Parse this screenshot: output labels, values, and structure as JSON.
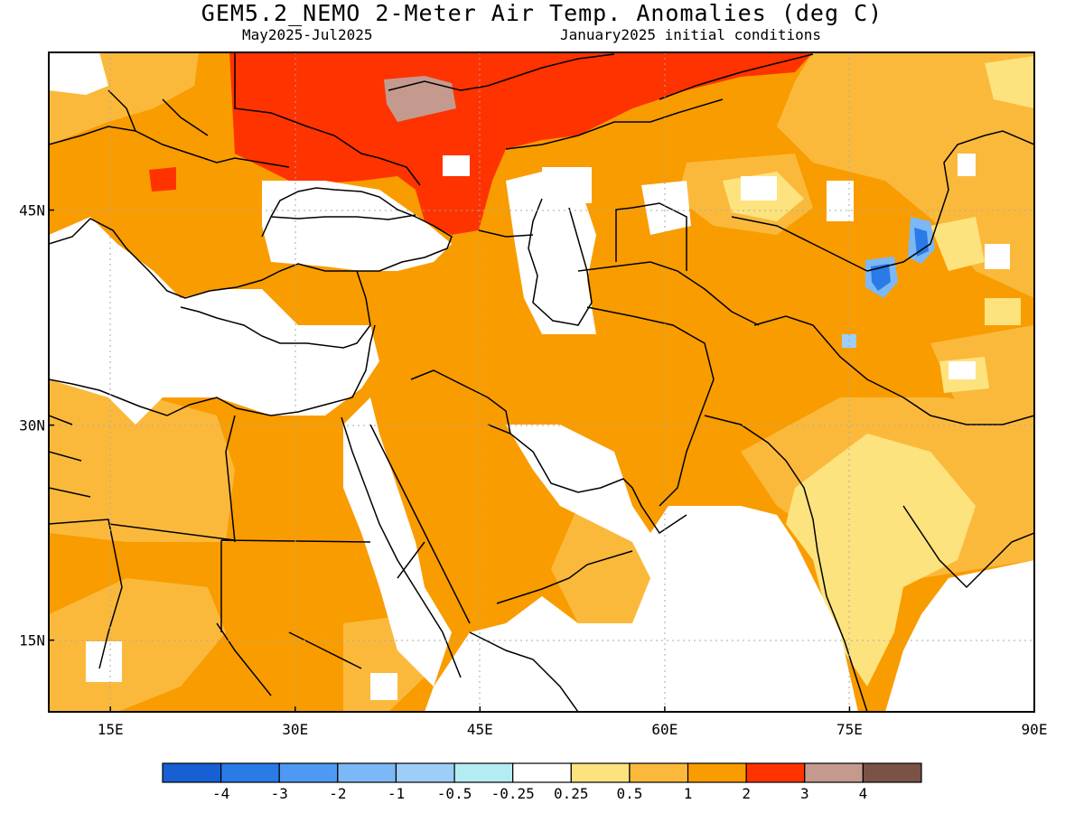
{
  "title": "GEM5.2_NEMO 2-Meter Air Temp. Anomalies (deg C)",
  "subtitle_left": "May2025-Jul2025",
  "subtitle_right": "January2025 initial conditions",
  "x_ticks": [
    {
      "lon": 15,
      "label": "15E"
    },
    {
      "lon": 30,
      "label": "30E"
    },
    {
      "lon": 45,
      "label": "45E"
    },
    {
      "lon": 60,
      "label": "60E"
    },
    {
      "lon": 75,
      "label": "75E"
    },
    {
      "lon": 90,
      "label": "90E"
    }
  ],
  "y_ticks": [
    {
      "lat": 45,
      "label": "45N"
    },
    {
      "lat": 30,
      "label": "30N"
    },
    {
      "lat": 15,
      "label": "15N"
    }
  ],
  "map_extent": {
    "lon_min": 10,
    "lon_max": 90,
    "lat_min": 10,
    "lat_max": 56
  },
  "colorbar": {
    "colors": [
      "#1660d4",
      "#2a7ae8",
      "#4e9af2",
      "#7cb8f6",
      "#9ccef8",
      "#b4ecf4",
      "#ffffff",
      "#fde37e",
      "#fbb93c",
      "#f99c00",
      "#ff3300",
      "#c59a8e",
      "#7a5246"
    ],
    "labels": [
      "-4",
      "-3",
      "-2",
      "-1",
      "-0.5",
      "-0.25",
      "0.25",
      "0.5",
      "1",
      "2",
      "3",
      "4"
    ]
  }
}
